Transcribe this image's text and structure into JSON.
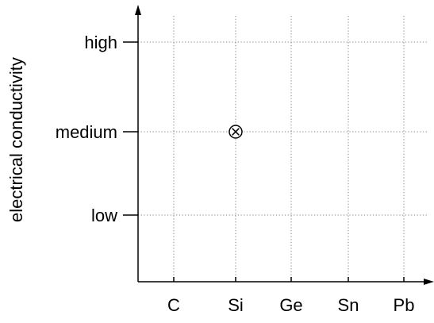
{
  "chart_data": {
    "type": "scatter",
    "title": "",
    "xlabel": "",
    "ylabel": "electrical conductivity",
    "categories": [
      "C",
      "Si",
      "Ge",
      "Sn",
      "Pb"
    ],
    "y_levels": [
      "low",
      "medium",
      "high"
    ],
    "grid": true,
    "grid_style": "dotted",
    "points": [
      {
        "x": "Si",
        "y": "medium",
        "marker": "circle-x"
      }
    ],
    "colors": {
      "axis": "#000000",
      "grid": "#808080",
      "marker": "#000000"
    }
  }
}
